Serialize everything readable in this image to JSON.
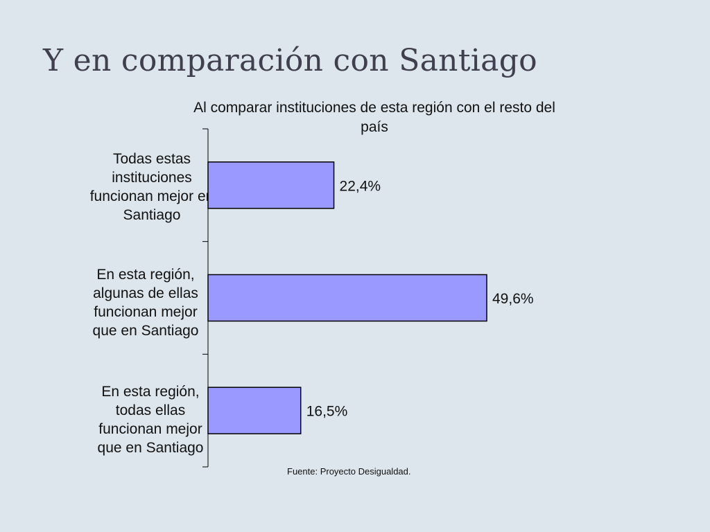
{
  "slide": {
    "title": "Y en comparación con Santiago",
    "source": "Fuente: Proyecto Desigualdad."
  },
  "chart_data": {
    "type": "bar",
    "orientation": "horizontal",
    "title": "Al comparar instituciones de esta región con el resto del país",
    "categories": [
      "Todas estas instituciones funcionan mejor en Santiago",
      "En esta región, algunas de ellas funcionan mejor que en Santiago",
      "En esta región, todas ellas funcionan mejor que en Santiago"
    ],
    "values": [
      22.4,
      49.6,
      16.5
    ],
    "value_labels": [
      "22,4%",
      "49,6%",
      "16,5%"
    ],
    "xlim": [
      0,
      60
    ],
    "unit": "%",
    "grid": false,
    "legend": "none",
    "colors": {
      "bar_fill": "#9999ff",
      "bar_stroke": "#000000",
      "axis": "#000000"
    }
  }
}
